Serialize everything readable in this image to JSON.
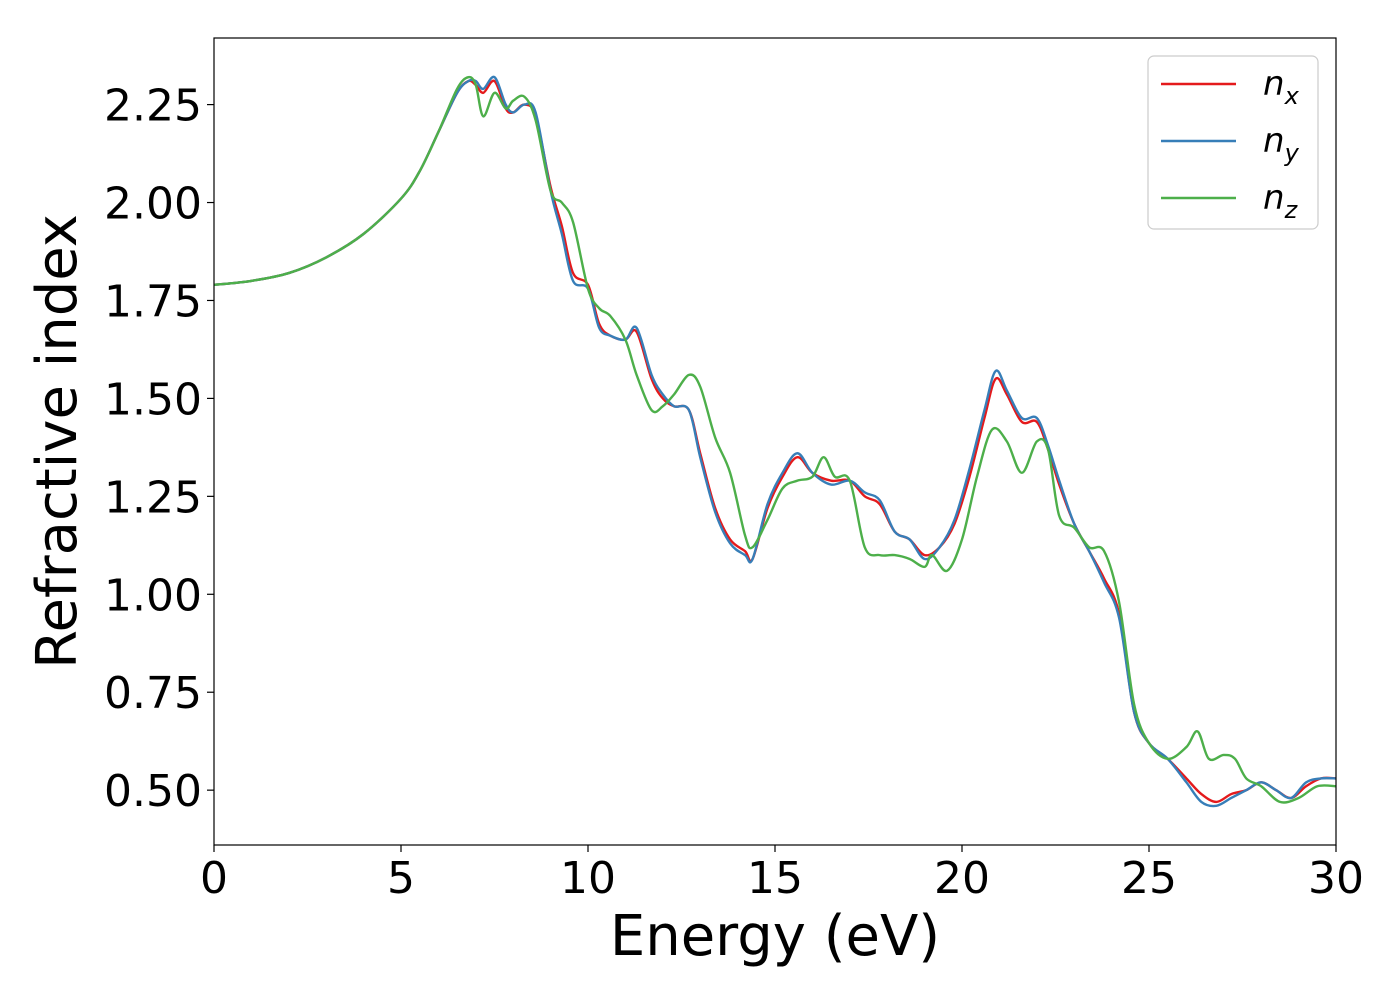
{
  "chart_data": {
    "type": "line",
    "title": "",
    "xlabel": "Energy (eV)",
    "ylabel": "Refractive index",
    "xlim": [
      0,
      30
    ],
    "ylim": [
      0.36,
      2.42
    ],
    "xticks": [
      0,
      5,
      10,
      15,
      20,
      25,
      30
    ],
    "xtick_labels": [
      "0",
      "5",
      "10",
      "15",
      "20",
      "25",
      "30"
    ],
    "yticks": [
      0.5,
      0.75,
      1.0,
      1.25,
      1.5,
      1.75,
      2.0,
      2.25
    ],
    "ytick_labels": [
      "0.50",
      "0.75",
      "1.00",
      "1.25",
      "1.50",
      "1.75",
      "2.00",
      "2.25"
    ],
    "grid": false,
    "legend_position": "top-right",
    "series": [
      {
        "name": "n_x",
        "label_base": "n",
        "label_sub": "x",
        "color": "#e41a1c",
        "x": [
          0,
          1,
          2,
          3,
          4,
          5,
          5.5,
          6,
          6.5,
          6.8,
          7.0,
          7.2,
          7.5,
          7.8,
          8.0,
          8.3,
          8.6,
          9.0,
          9.3,
          9.6,
          10.0,
          10.3,
          10.6,
          11.0,
          11.3,
          11.7,
          12.0,
          12.3,
          12.7,
          13.0,
          13.4,
          13.8,
          14.2,
          14.4,
          14.8,
          15.2,
          15.6,
          16.0,
          16.5,
          17.0,
          17.4,
          17.8,
          18.2,
          18.6,
          19.0,
          19.4,
          19.8,
          20.2,
          20.6,
          20.9,
          21.2,
          21.6,
          22.0,
          22.3,
          22.6,
          23.0,
          23.4,
          23.8,
          24.2,
          24.6,
          25.0,
          25.5,
          26.0,
          26.4,
          26.8,
          27.2,
          27.6,
          28.0,
          28.4,
          28.8,
          29.2,
          29.6,
          30
        ],
        "y": [
          1.79,
          1.8,
          1.82,
          1.86,
          1.92,
          2.01,
          2.08,
          2.18,
          2.28,
          2.31,
          2.3,
          2.28,
          2.31,
          2.24,
          2.23,
          2.25,
          2.22,
          2.04,
          1.94,
          1.82,
          1.79,
          1.69,
          1.66,
          1.65,
          1.67,
          1.55,
          1.5,
          1.48,
          1.47,
          1.36,
          1.22,
          1.14,
          1.11,
          1.09,
          1.22,
          1.3,
          1.35,
          1.31,
          1.29,
          1.29,
          1.25,
          1.23,
          1.16,
          1.14,
          1.1,
          1.12,
          1.18,
          1.3,
          1.45,
          1.55,
          1.51,
          1.44,
          1.44,
          1.37,
          1.28,
          1.18,
          1.11,
          1.04,
          0.95,
          0.7,
          0.62,
          0.58,
          0.53,
          0.49,
          0.47,
          0.49,
          0.5,
          0.52,
          0.5,
          0.48,
          0.51,
          0.53,
          0.53
        ]
      },
      {
        "name": "n_y",
        "label_base": "n",
        "label_sub": "y",
        "color": "#377eb8",
        "x": [
          0,
          1,
          2,
          3,
          4,
          5,
          5.5,
          6,
          6.5,
          6.8,
          7.0,
          7.2,
          7.5,
          7.8,
          8.0,
          8.3,
          8.6,
          9.0,
          9.3,
          9.6,
          10.0,
          10.3,
          10.6,
          11.0,
          11.3,
          11.7,
          12.0,
          12.3,
          12.7,
          13.0,
          13.4,
          13.8,
          14.2,
          14.4,
          14.8,
          15.2,
          15.6,
          16.0,
          16.5,
          17.0,
          17.4,
          17.8,
          18.2,
          18.6,
          19.0,
          19.4,
          19.8,
          20.2,
          20.6,
          20.9,
          21.2,
          21.6,
          22.0,
          22.3,
          22.6,
          23.0,
          23.4,
          23.8,
          24.2,
          24.6,
          25.0,
          25.5,
          26.0,
          26.4,
          26.8,
          27.2,
          27.6,
          28.0,
          28.4,
          28.8,
          29.2,
          29.6,
          30
        ],
        "y": [
          1.79,
          1.8,
          1.82,
          1.86,
          1.92,
          2.01,
          2.08,
          2.18,
          2.28,
          2.31,
          2.31,
          2.29,
          2.32,
          2.25,
          2.23,
          2.25,
          2.23,
          2.03,
          1.92,
          1.8,
          1.78,
          1.68,
          1.66,
          1.65,
          1.68,
          1.56,
          1.51,
          1.48,
          1.47,
          1.35,
          1.21,
          1.13,
          1.1,
          1.09,
          1.23,
          1.31,
          1.36,
          1.31,
          1.28,
          1.29,
          1.26,
          1.24,
          1.16,
          1.14,
          1.09,
          1.12,
          1.19,
          1.32,
          1.47,
          1.57,
          1.52,
          1.45,
          1.45,
          1.38,
          1.29,
          1.18,
          1.11,
          1.03,
          0.94,
          0.7,
          0.62,
          0.58,
          0.52,
          0.47,
          0.46,
          0.48,
          0.5,
          0.52,
          0.5,
          0.48,
          0.52,
          0.53,
          0.53
        ]
      },
      {
        "name": "n_z",
        "label_base": "n",
        "label_sub": "z",
        "color": "#4daf4a",
        "x": [
          0,
          1,
          2,
          3,
          4,
          5,
          5.5,
          6,
          6.5,
          6.8,
          7.0,
          7.2,
          7.5,
          7.8,
          8.0,
          8.3,
          8.6,
          9.0,
          9.3,
          9.6,
          10.0,
          10.3,
          10.6,
          11.0,
          11.3,
          11.7,
          12.0,
          12.3,
          12.7,
          13.0,
          13.4,
          13.8,
          14.2,
          14.4,
          14.8,
          15.2,
          15.6,
          16.0,
          16.3,
          16.6,
          17.0,
          17.4,
          17.8,
          18.2,
          18.6,
          19.0,
          19.2,
          19.6,
          20.0,
          20.4,
          20.8,
          21.2,
          21.6,
          22.0,
          22.3,
          22.6,
          23.0,
          23.4,
          23.8,
          24.2,
          24.6,
          25.0,
          25.5,
          26.0,
          26.3,
          26.6,
          27.0,
          27.3,
          27.6,
          28.0,
          28.5,
          29.0,
          29.5,
          30
        ],
        "y": [
          1.79,
          1.8,
          1.82,
          1.86,
          1.92,
          2.01,
          2.08,
          2.18,
          2.29,
          2.32,
          2.3,
          2.22,
          2.28,
          2.24,
          2.26,
          2.27,
          2.21,
          2.03,
          2.0,
          1.95,
          1.78,
          1.73,
          1.71,
          1.65,
          1.56,
          1.47,
          1.48,
          1.51,
          1.56,
          1.53,
          1.4,
          1.31,
          1.15,
          1.12,
          1.19,
          1.27,
          1.29,
          1.3,
          1.35,
          1.3,
          1.29,
          1.12,
          1.1,
          1.1,
          1.09,
          1.07,
          1.1,
          1.06,
          1.14,
          1.3,
          1.42,
          1.39,
          1.31,
          1.39,
          1.37,
          1.2,
          1.17,
          1.12,
          1.11,
          0.98,
          0.72,
          0.62,
          0.58,
          0.61,
          0.65,
          0.58,
          0.59,
          0.58,
          0.53,
          0.51,
          0.47,
          0.48,
          0.51,
          0.51
        ]
      }
    ]
  }
}
